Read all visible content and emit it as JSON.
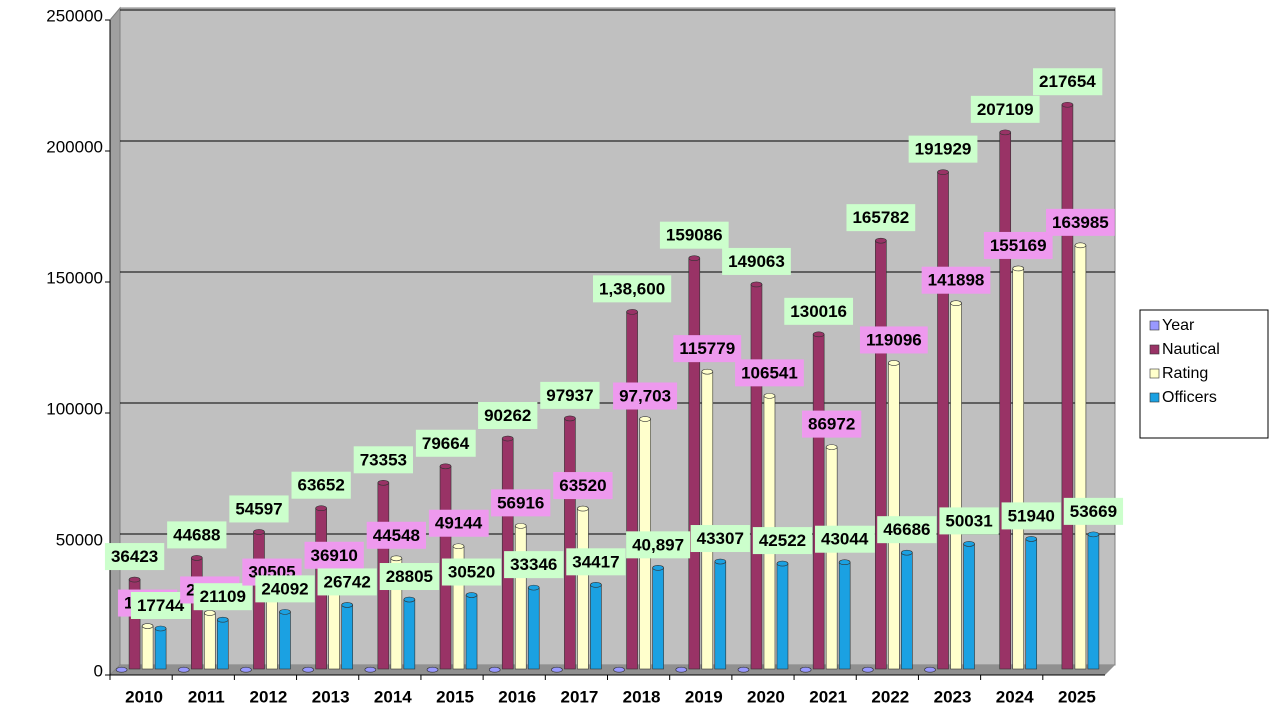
{
  "chart_data": {
    "type": "bar3d",
    "categories": [
      "2010",
      "2011",
      "2012",
      "2013",
      "2014",
      "2015",
      "2016",
      "2017",
      "2018",
      "2019",
      "2020",
      "2021",
      "2022",
      "2023",
      "2024",
      "2025"
    ],
    "series": [
      {
        "name": "Year",
        "color": "#9999ff",
        "values": [
          2010,
          2011,
          2012,
          2013,
          2014,
          2015,
          2016,
          2017,
          2018,
          2019,
          2020,
          2021,
          2022,
          2023,
          null,
          null
        ]
      },
      {
        "name": "Nautical",
        "color": "#993366",
        "label_color": "#ccffcc",
        "values": [
          36423,
          44688,
          54597,
          63652,
          73353,
          79664,
          90262,
          97937,
          138600,
          159086,
          149063,
          130016,
          165782,
          191929,
          207109,
          217654
        ],
        "value_labels": [
          "36423",
          "44688",
          "54597",
          "63652",
          "73353",
          "79664",
          "90262",
          "97937",
          "1,38,600",
          "159086",
          "149063",
          "130016",
          "165782",
          "191929",
          "207109",
          "217654"
        ]
      },
      {
        "name": "Rating",
        "color": "#ffffcc",
        "label_color": "#ee99ee",
        "values": [
          18679,
          23679,
          30505,
          36910,
          44548,
          49144,
          56916,
          63520,
          97703,
          115779,
          106541,
          86972,
          119096,
          141898,
          155169,
          163985
        ],
        "value_labels": [
          "18679",
          "23679",
          "30505",
          "36910",
          "44548",
          "49144",
          "56916",
          "63520",
          "97,703",
          "115779",
          "106541",
          "86972",
          "119096",
          "141898",
          "155169",
          "163985"
        ]
      },
      {
        "name": "Officers",
        "color": "#1ba1e2",
        "label_color": "#ccffcc",
        "values": [
          17744,
          21109,
          24092,
          26742,
          28805,
          30520,
          33346,
          34417,
          40897,
          43307,
          42522,
          43044,
          46686,
          50031,
          51940,
          53669
        ],
        "value_labels": [
          "17744",
          "21109",
          "24092",
          "26742",
          "28805",
          "30520",
          "33346",
          "34417",
          "40,897",
          "43307",
          "42522",
          "43044",
          "46686",
          "50031",
          "51940",
          "53669"
        ]
      }
    ],
    "ylim": [
      0,
      250000
    ],
    "yticks": [
      0,
      50000,
      100000,
      150000,
      200000,
      250000
    ],
    "grid": true,
    "legend": "right"
  }
}
